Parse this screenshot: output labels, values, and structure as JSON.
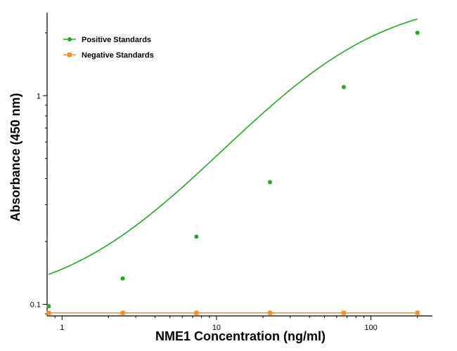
{
  "chart_data": {
    "type": "scatter",
    "title": "",
    "xlabel": "NME1 Concentration (ng/ml)",
    "ylabel": "Absorbance (450 nm)",
    "xscale": "log",
    "yscale": "log",
    "xlim": [
      0.8,
      250
    ],
    "ylim": [
      0.088,
      2.5
    ],
    "xticks": [
      {
        "value": 1,
        "label": "1"
      },
      {
        "value": 10,
        "label": "10"
      },
      {
        "value": 100,
        "label": "100"
      }
    ],
    "yticks": [
      {
        "value": 0.1,
        "label": "0.1"
      },
      {
        "value": 1,
        "label": "1"
      }
    ],
    "grid": false,
    "legend_position": "top-left",
    "series": [
      {
        "name": "Positive Standards",
        "color": "#22aa22",
        "fit": "4PL",
        "x": [
          0.82,
          2.47,
          7.41,
          22.2,
          66.7,
          200
        ],
        "y": [
          0.098,
          0.133,
          0.211,
          0.385,
          1.1,
          2.0
        ]
      },
      {
        "name": "Negative Standards",
        "color": "#ff8c1a",
        "fit": "line",
        "x": [
          0.82,
          2.47,
          7.41,
          22.2,
          66.7,
          200
        ],
        "y": [
          0.091,
          0.091,
          0.091,
          0.091,
          0.091,
          0.091
        ]
      }
    ]
  }
}
